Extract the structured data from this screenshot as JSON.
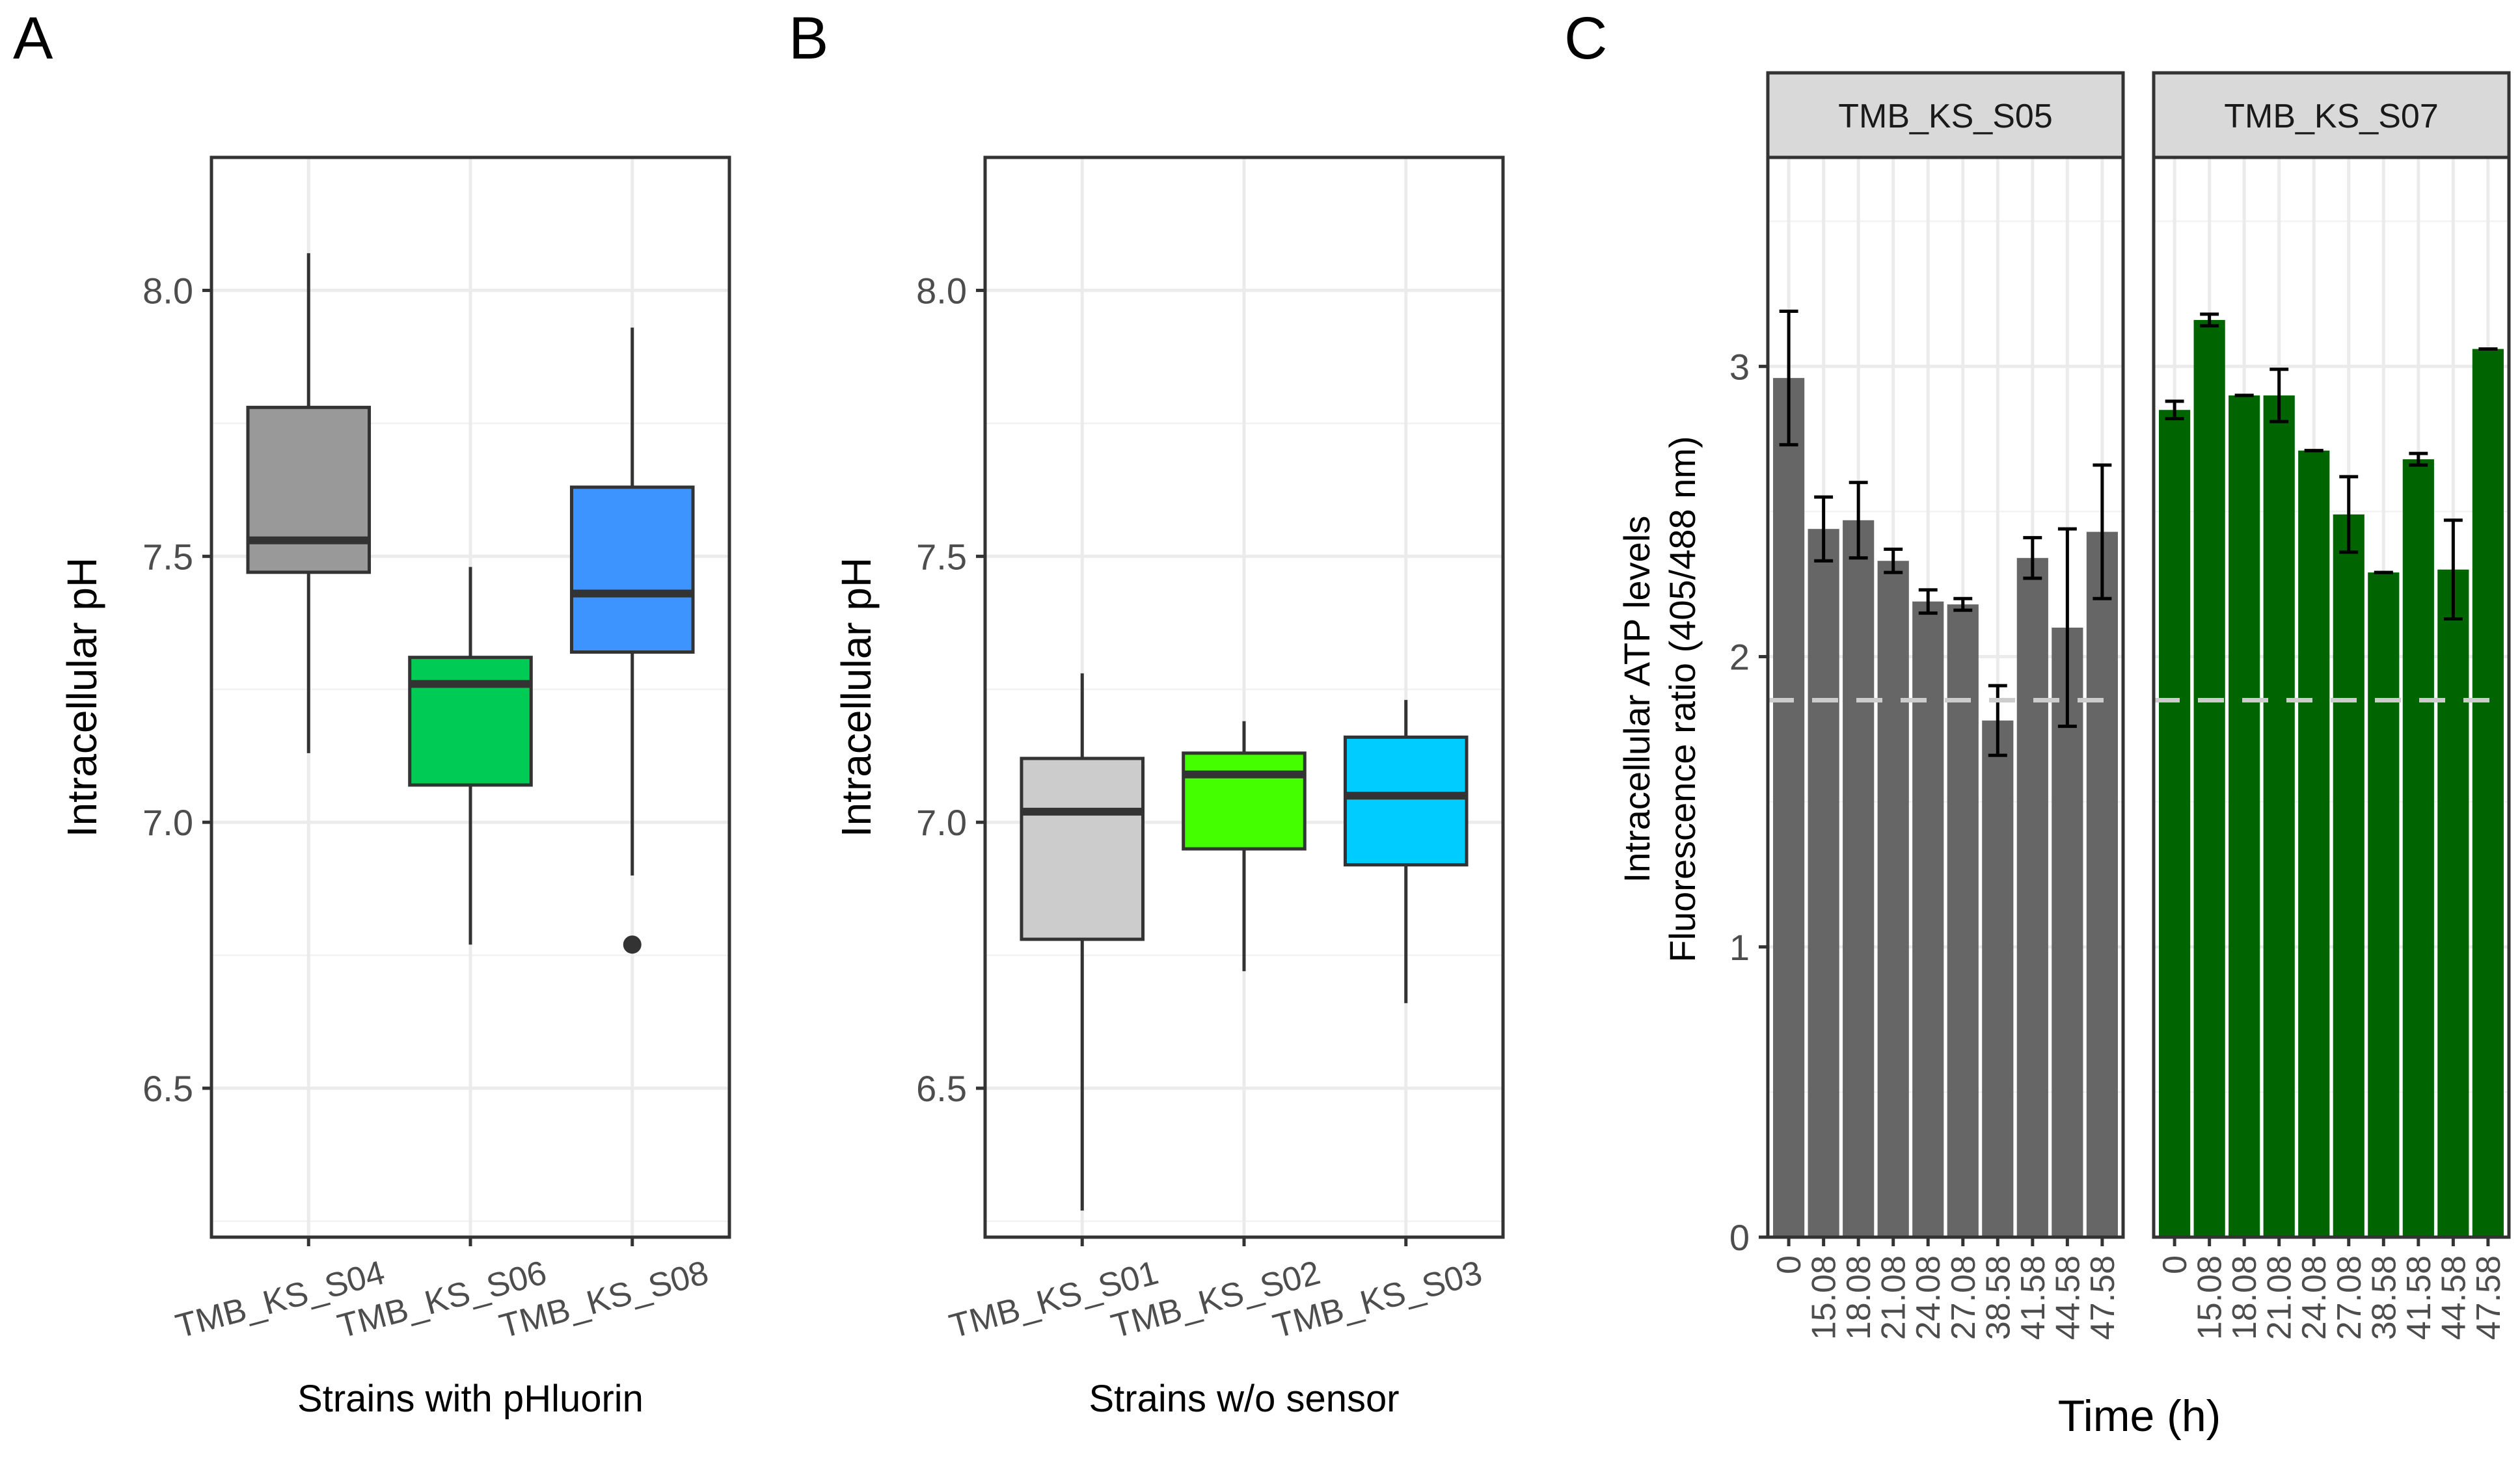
{
  "panel_labels": [
    "A",
    "B",
    "C"
  ],
  "chart_data": [
    {
      "type": "boxplot",
      "panel": "A",
      "title": "",
      "xlabel": "Strains with pHluorin",
      "ylabel": "Intracellular pH",
      "ylim": [
        6.22,
        8.25
      ],
      "yticks": [
        "6.5",
        "7.0",
        "7.5",
        "8.0"
      ],
      "grid": true,
      "categories": [
        "TMB_KS_S04",
        "TMB_KS_S06",
        "TMB_KS_S08"
      ],
      "boxes": [
        {
          "name": "TMB_KS_S04",
          "color": "#999999",
          "min": 7.13,
          "q1": 7.47,
          "median": 7.53,
          "q3": 7.78,
          "max": 8.07,
          "outliers": []
        },
        {
          "name": "TMB_KS_S06",
          "color": "#00CC55",
          "min": 6.77,
          "q1": 7.07,
          "median": 7.26,
          "q3": 7.31,
          "max": 7.48,
          "outliers": []
        },
        {
          "name": "TMB_KS_S08",
          "color": "#3D94FF",
          "min": 6.9,
          "q1": 7.32,
          "median": 7.43,
          "q3": 7.63,
          "max": 7.93,
          "outliers": [
            6.77
          ]
        }
      ]
    },
    {
      "type": "boxplot",
      "panel": "B",
      "title": "",
      "xlabel": "Strains w/o sensor",
      "ylabel": "Intracellular pH",
      "ylim": [
        6.22,
        8.25
      ],
      "yticks": [
        "6.5",
        "7.0",
        "7.5",
        "8.0"
      ],
      "grid": true,
      "categories": [
        "TMB_KS_S01",
        "TMB_KS_S02",
        "TMB_KS_S03"
      ],
      "boxes": [
        {
          "name": "TMB_KS_S01",
          "color": "#CCCCCC",
          "min": 6.27,
          "q1": 6.78,
          "median": 7.02,
          "q3": 7.12,
          "max": 7.28,
          "outliers": []
        },
        {
          "name": "TMB_KS_S02",
          "color": "#44FF00",
          "min": 6.72,
          "q1": 6.95,
          "median": 7.09,
          "q3": 7.13,
          "max": 7.19,
          "outliers": []
        },
        {
          "name": "TMB_KS_S03",
          "color": "#00CCFF",
          "min": 6.66,
          "q1": 6.92,
          "median": 7.05,
          "q3": 7.16,
          "max": 7.23,
          "outliers": []
        }
      ]
    },
    {
      "type": "bar",
      "panel": "C",
      "title": "",
      "xlabel": "Time (h)",
      "ylabel": [
        "Intracellular ATP levels",
        "Fluorescence ratio (405/488 nm)"
      ],
      "ylim": [
        0,
        3.72
      ],
      "yticks": [
        "0",
        "1",
        "2",
        "3"
      ],
      "reference_line": 1.85,
      "grid": true,
      "categories": [
        "0",
        "15.08",
        "18.08",
        "21.08",
        "24.08",
        "27.08",
        "38.58",
        "41.58",
        "44.58",
        "47.58"
      ],
      "facets": [
        {
          "name": "TMB_KS_S05",
          "color": "#666666",
          "values": [
            2.96,
            2.44,
            2.47,
            2.33,
            2.19,
            2.18,
            1.78,
            2.34,
            2.1,
            2.43
          ],
          "error": [
            0.23,
            0.11,
            0.13,
            0.04,
            0.04,
            0.02,
            0.12,
            0.07,
            0.34,
            0.23
          ]
        },
        {
          "name": "TMB_KS_S07",
          "color": "#006400",
          "values": [
            2.85,
            3.16,
            2.9,
            2.9,
            2.71,
            2.49,
            2.29,
            2.68,
            2.3,
            3.06
          ],
          "error": [
            0.03,
            0.02,
            0.0,
            0.09,
            0.0,
            0.13,
            0.0,
            0.02,
            0.17,
            0.0
          ]
        }
      ]
    }
  ]
}
